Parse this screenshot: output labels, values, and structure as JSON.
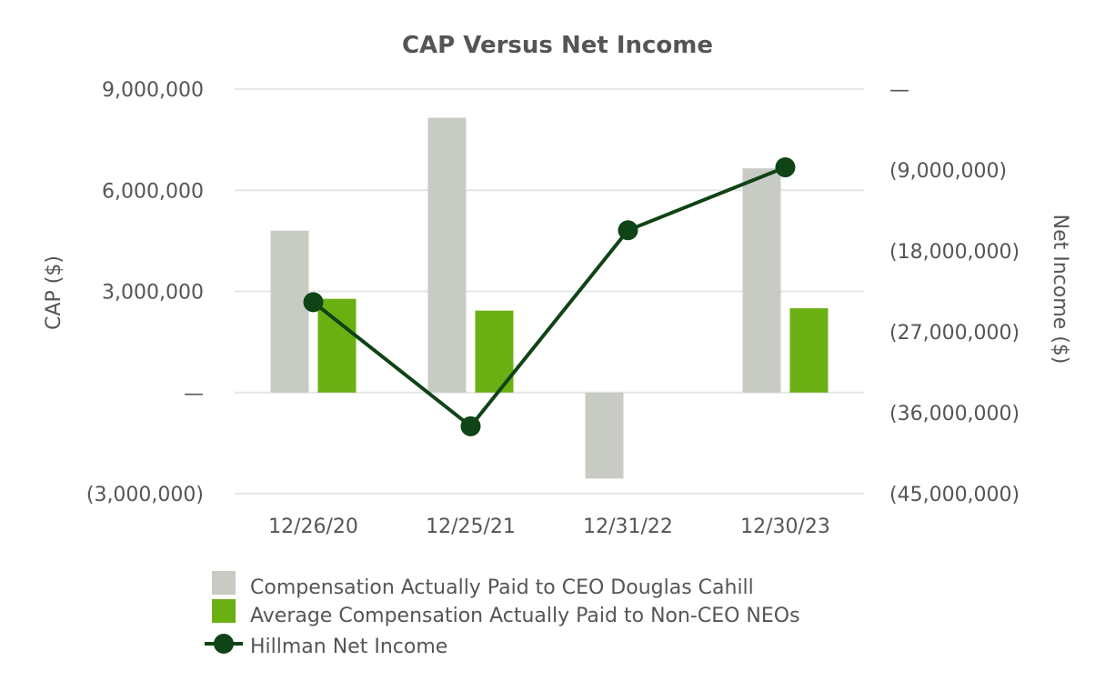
{
  "chart_data": {
    "type": "bar",
    "title": "CAP Versus Net Income",
    "categories": [
      "12/26/20",
      "12/25/21",
      "12/31/22",
      "12/30/23"
    ],
    "ylabel": "CAP ($)",
    "y2label": "Net Income ($)",
    "ylim": [
      -3000000,
      9000000
    ],
    "y2lim": [
      -45000000,
      0
    ],
    "yticks": [
      9000000,
      6000000,
      3000000,
      0,
      -3000000
    ],
    "ytick_labels": [
      "9,000,000",
      "6,000,000",
      "3,000,000",
      "—",
      "(3,000,000)"
    ],
    "y2ticks": [
      0,
      -9000000,
      -18000000,
      -27000000,
      -36000000,
      -45000000
    ],
    "y2tick_labels": [
      "—",
      "(9,000,000)",
      "(18,000,000)",
      "(27,000,000)",
      "(36,000,000)",
      "(45,000,000)"
    ],
    "series": [
      {
        "name": "Compensation Actually Paid to CEO Douglas Cahill",
        "type": "bar",
        "axis": "left",
        "color": "#c8cbc4",
        "values": [
          4800000,
          8150000,
          -2550000,
          6650000
        ]
      },
      {
        "name": "Average Compensation Actually Paid to Non-CEO NEOs",
        "type": "bar",
        "axis": "left",
        "color": "#6ab013",
        "values": [
          2780000,
          2430000,
          0,
          2500000
        ]
      },
      {
        "name": "Hillman Net Income",
        "type": "line",
        "axis": "right",
        "color": "#0f4416",
        "values": [
          -23700000,
          -37500000,
          -15700000,
          -8700000
        ]
      }
    ],
    "legend_position": "bottom"
  }
}
